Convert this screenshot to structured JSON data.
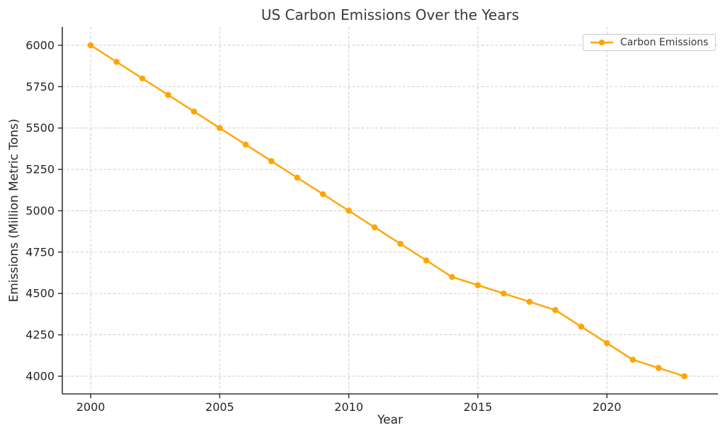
{
  "chart_data": {
    "type": "line",
    "title": "US Carbon Emissions Over the Years",
    "xlabel": "Year",
    "ylabel": "Emissions (Million Metric Tons)",
    "x": [
      2000,
      2001,
      2002,
      2003,
      2004,
      2005,
      2006,
      2007,
      2008,
      2009,
      2010,
      2011,
      2012,
      2013,
      2014,
      2015,
      2016,
      2017,
      2018,
      2019,
      2020,
      2021,
      2022,
      2023
    ],
    "series": [
      {
        "name": "Carbon Emissions",
        "color": "#FFA500",
        "marker": "circle",
        "values": [
          6000,
          5900,
          5800,
          5700,
          5600,
          5500,
          5400,
          5300,
          5200,
          5100,
          5000,
          4900,
          4800,
          4700,
          4600,
          4550,
          4500,
          4450,
          4400,
          4300,
          4200,
          4100,
          4050,
          4000
        ]
      }
    ],
    "xticks": [
      2000,
      2005,
      2010,
      2015,
      2020
    ],
    "yticks": [
      4000,
      4250,
      4500,
      4750,
      5000,
      5250,
      5500,
      5750,
      6000
    ],
    "xlim": [
      1998.9,
      2024.3
    ],
    "ylim": [
      3893,
      6111
    ],
    "grid": true,
    "grid_style": "dashed",
    "legend_position": "upper right",
    "colors": {
      "line": "#FFA500",
      "grid": "#cdcdcd",
      "spine": "#333333",
      "tick_text": "#262626",
      "title_text": "#3a3a3a",
      "background": "#ffffff"
    }
  }
}
